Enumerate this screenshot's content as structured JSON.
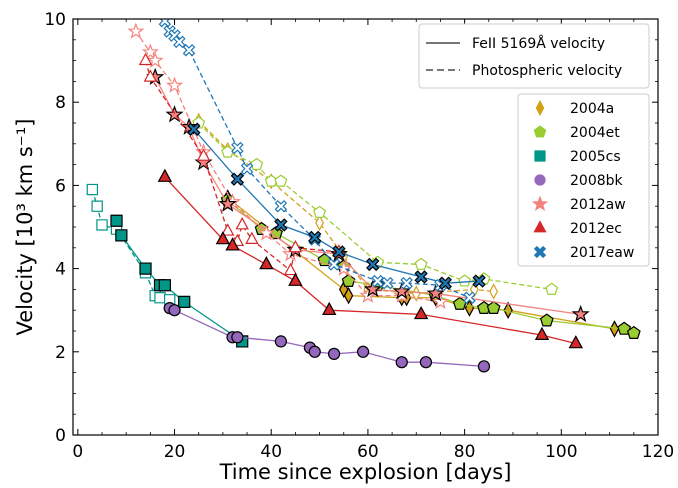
{
  "chart_data": {
    "type": "scatter",
    "xlabel": "Time since explosion [days]",
    "ylabel": "Velocity [10³ km s⁻¹]",
    "xlim": [
      -1,
      120
    ],
    "ylim": [
      0,
      10
    ],
    "xticks": [
      0,
      20,
      40,
      60,
      80,
      100,
      120
    ],
    "yticks": [
      0,
      2,
      4,
      6,
      8,
      10
    ],
    "line_legend": [
      {
        "label": "FeII 5169Å velocity",
        "style": "solid"
      },
      {
        "label": "Photospheric velocity",
        "style": "dashed"
      }
    ],
    "series": [
      {
        "name": "2004a",
        "color": "#d4a017",
        "marker": "diamond",
        "fe": [
          [
            31,
            5.7
          ],
          [
            55,
            3.5
          ],
          [
            56,
            3.35
          ],
          [
            67,
            3.3
          ],
          [
            68,
            3.3
          ],
          [
            74,
            3.3
          ],
          [
            81,
            3.05
          ],
          [
            89,
            3.0
          ],
          [
            111,
            2.55
          ]
        ],
        "phot": [
          [
            25,
            7.55
          ],
          [
            31,
            6.85
          ],
          [
            40,
            6.1
          ],
          [
            50,
            5.1
          ],
          [
            55,
            4.3
          ],
          [
            60,
            3.5
          ],
          [
            70,
            3.4
          ],
          [
            82,
            3.5
          ],
          [
            86,
            3.45
          ]
        ]
      },
      {
        "name": "2004et",
        "color": "#9acd32",
        "marker": "pentagon",
        "fe": [
          [
            31,
            5.65
          ],
          [
            38,
            4.95
          ],
          [
            41,
            4.85
          ],
          [
            51,
            4.2
          ],
          [
            55,
            4.05
          ],
          [
            56,
            3.7
          ],
          [
            62,
            3.6
          ],
          [
            74,
            3.35
          ],
          [
            79,
            3.15
          ],
          [
            84,
            3.05
          ],
          [
            86,
            3.05
          ],
          [
            97,
            2.75
          ],
          [
            113,
            2.55
          ],
          [
            115,
            2.45
          ]
        ],
        "phot": [
          [
            25,
            7.5
          ],
          [
            31,
            6.8
          ],
          [
            37,
            6.5
          ],
          [
            40,
            6.1
          ],
          [
            42,
            6.1
          ],
          [
            50,
            5.35
          ],
          [
            62,
            4.15
          ],
          [
            71,
            4.1
          ],
          [
            80,
            3.7
          ],
          [
            84,
            3.75
          ],
          [
            98,
            3.5
          ]
        ]
      },
      {
        "name": "2005cs",
        "color": "#009688",
        "marker": "square",
        "fe": [
          [
            8,
            5.15
          ],
          [
            9,
            4.8
          ],
          [
            14,
            4.0
          ],
          [
            17,
            3.6
          ],
          [
            18,
            3.6
          ],
          [
            22,
            3.2
          ],
          [
            34,
            2.25
          ]
        ],
        "phot": [
          [
            3,
            5.9
          ],
          [
            4,
            5.5
          ],
          [
            5,
            5.05
          ],
          [
            8,
            4.95
          ],
          [
            14,
            3.9
          ],
          [
            16,
            3.35
          ],
          [
            17,
            3.3
          ],
          [
            19,
            3.25
          ]
        ]
      },
      {
        "name": "2008bk",
        "color": "#9467bd",
        "marker": "circle",
        "fe": [
          [
            19,
            3.05
          ],
          [
            20,
            3.0
          ],
          [
            32,
            2.35
          ],
          [
            33,
            2.35
          ],
          [
            42,
            2.25
          ],
          [
            48,
            2.1
          ],
          [
            49,
            2.0
          ],
          [
            53,
            1.95
          ],
          [
            59,
            2.0
          ],
          [
            67,
            1.75
          ],
          [
            72,
            1.75
          ],
          [
            84,
            1.65
          ]
        ],
        "phot": []
      },
      {
        "name": "2012aw",
        "color": "#f4837d",
        "marker": "star",
        "fe": [
          [
            16,
            8.6
          ],
          [
            20,
            7.7
          ],
          [
            23,
            7.4
          ],
          [
            26,
            6.55
          ],
          [
            31,
            5.55
          ],
          [
            45,
            4.45
          ],
          [
            54,
            4.35
          ],
          [
            61,
            3.5
          ],
          [
            67,
            3.45
          ],
          [
            74,
            3.4
          ],
          [
            104,
            2.9
          ]
        ],
        "phot": [
          [
            12,
            9.7
          ],
          [
            15,
            9.2
          ],
          [
            16,
            9.0
          ],
          [
            20,
            8.4
          ],
          [
            26,
            6.8
          ],
          [
            32,
            5.6
          ],
          [
            39,
            4.85
          ],
          [
            44,
            4.35
          ],
          [
            55,
            4.0
          ],
          [
            60,
            3.35
          ],
          [
            67,
            3.35
          ],
          [
            75,
            3.2
          ]
        ]
      },
      {
        "name": "2012ec",
        "color": "#d62728",
        "marker": "triangle",
        "fe": [
          [
            18,
            6.2
          ],
          [
            30,
            4.7
          ],
          [
            32,
            4.55
          ],
          [
            39,
            4.1
          ],
          [
            45,
            3.7
          ],
          [
            52,
            3.0
          ],
          [
            71,
            2.9
          ],
          [
            96,
            2.4
          ],
          [
            103,
            2.2
          ]
        ],
        "phot": [
          [
            14,
            9.0
          ],
          [
            15,
            8.6
          ],
          [
            26,
            6.7
          ],
          [
            31,
            4.9
          ],
          [
            33,
            4.65
          ],
          [
            34,
            5.05
          ],
          [
            36,
            4.7
          ],
          [
            44,
            3.95
          ],
          [
            45,
            4.5
          ],
          [
            54,
            4.4
          ]
        ]
      },
      {
        "name": "2017eaw",
        "color": "#1f77b4",
        "marker": "x",
        "fe": [
          [
            24,
            7.35
          ],
          [
            33,
            6.15
          ],
          [
            42,
            5.05
          ],
          [
            49,
            4.75
          ],
          [
            54,
            4.4
          ],
          [
            61,
            4.1
          ],
          [
            71,
            3.8
          ],
          [
            76,
            3.65
          ],
          [
            83,
            3.7
          ]
        ],
        "phot": [
          [
            18,
            9.95
          ],
          [
            19,
            9.7
          ],
          [
            20,
            9.6
          ],
          [
            21,
            9.45
          ],
          [
            23,
            9.25
          ],
          [
            33,
            6.9
          ],
          [
            35,
            6.4
          ],
          [
            42,
            5.5
          ],
          [
            49,
            4.7
          ],
          [
            53,
            4.1
          ],
          [
            62,
            3.7
          ],
          [
            64,
            3.65
          ],
          [
            68,
            3.65
          ],
          [
            75,
            3.6
          ],
          [
            81,
            3.3
          ]
        ]
      }
    ]
  }
}
